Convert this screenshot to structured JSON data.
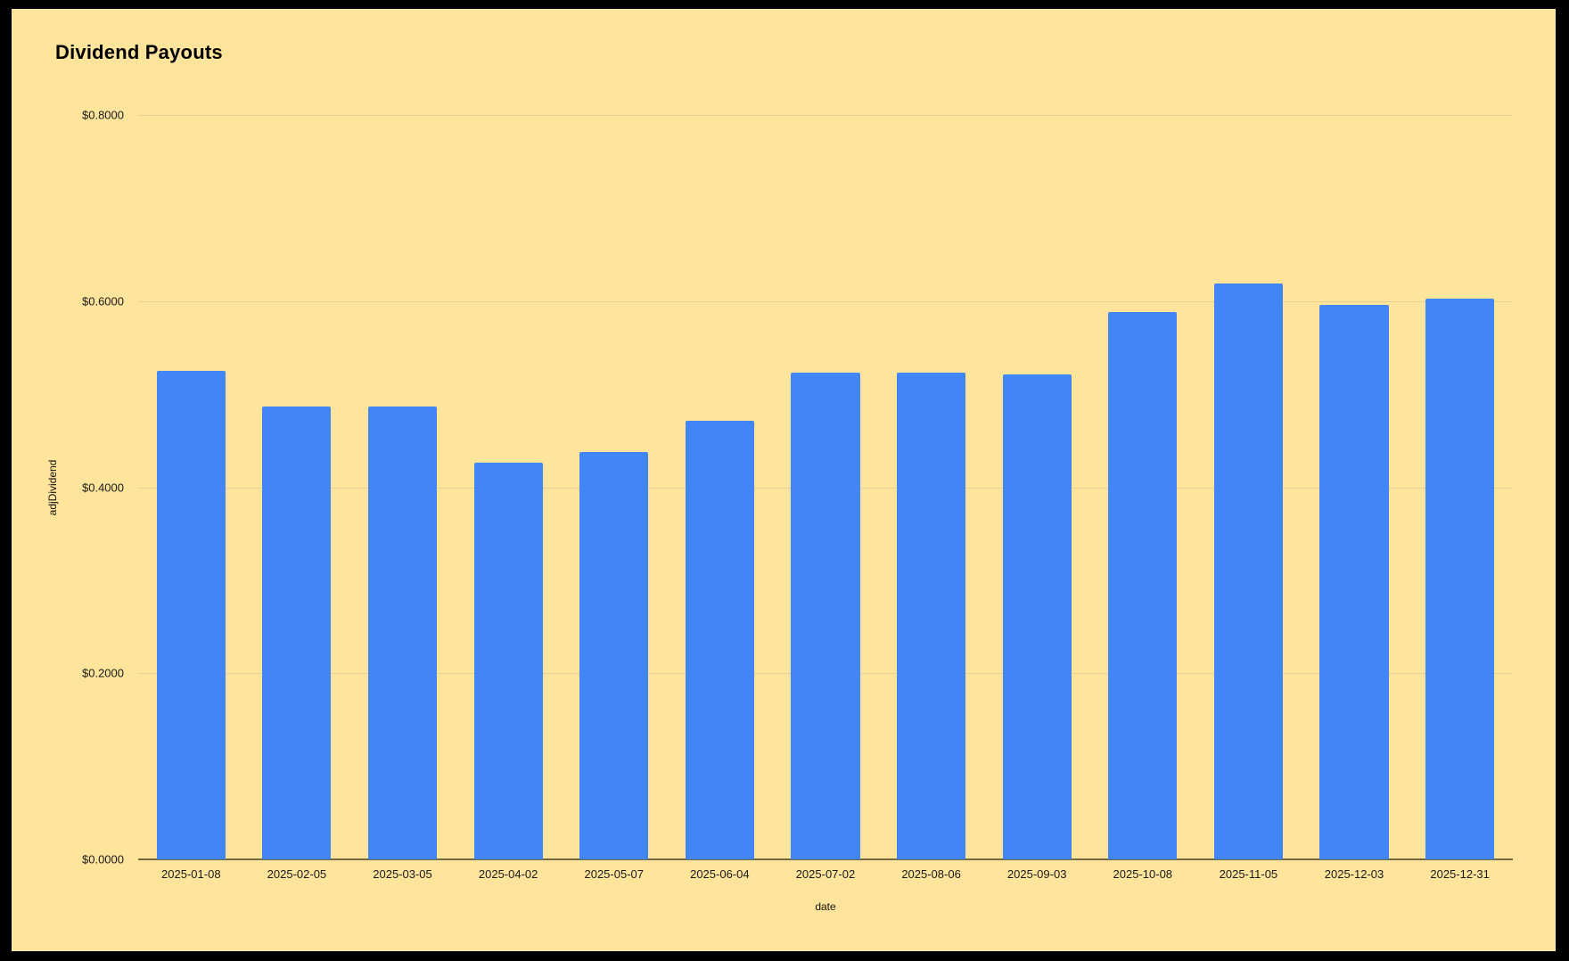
{
  "title": "Dividend Payouts",
  "colors": {
    "frame_background": "#000000",
    "canvas_background": "#FFE49C",
    "bar": "#4285F4",
    "gridline": "#E3CF97",
    "axis_line": "#736746",
    "text": "#1a1a1a"
  },
  "chart_data": {
    "type": "bar",
    "title": "Dividend Payouts",
    "xlabel": "date",
    "ylabel": "adjDividend",
    "categories": [
      "2025-01-08",
      "2025-02-05",
      "2025-03-05",
      "2025-04-02",
      "2025-05-07",
      "2025-06-04",
      "2025-07-02",
      "2025-08-06",
      "2025-09-03",
      "2025-10-08",
      "2025-11-05",
      "2025-12-03",
      "2025-12-31"
    ],
    "values": [
      0.525,
      0.487,
      0.487,
      0.426,
      0.438,
      0.471,
      0.523,
      0.523,
      0.521,
      0.588,
      0.619,
      0.596,
      0.603
    ],
    "ylim": [
      0,
      0.8
    ],
    "y_ticks": [
      {
        "label": "$0.8000",
        "value": 0.8
      },
      {
        "label": "$0.6000",
        "value": 0.6
      },
      {
        "label": "$0.4000",
        "value": 0.4
      },
      {
        "label": "$0.2000",
        "value": 0.2
      },
      {
        "label": "$0.0000",
        "value": 0.0
      }
    ],
    "grid": true,
    "legend": "none",
    "bar_color": "#4285F4",
    "background_color": "#FFE49C"
  }
}
